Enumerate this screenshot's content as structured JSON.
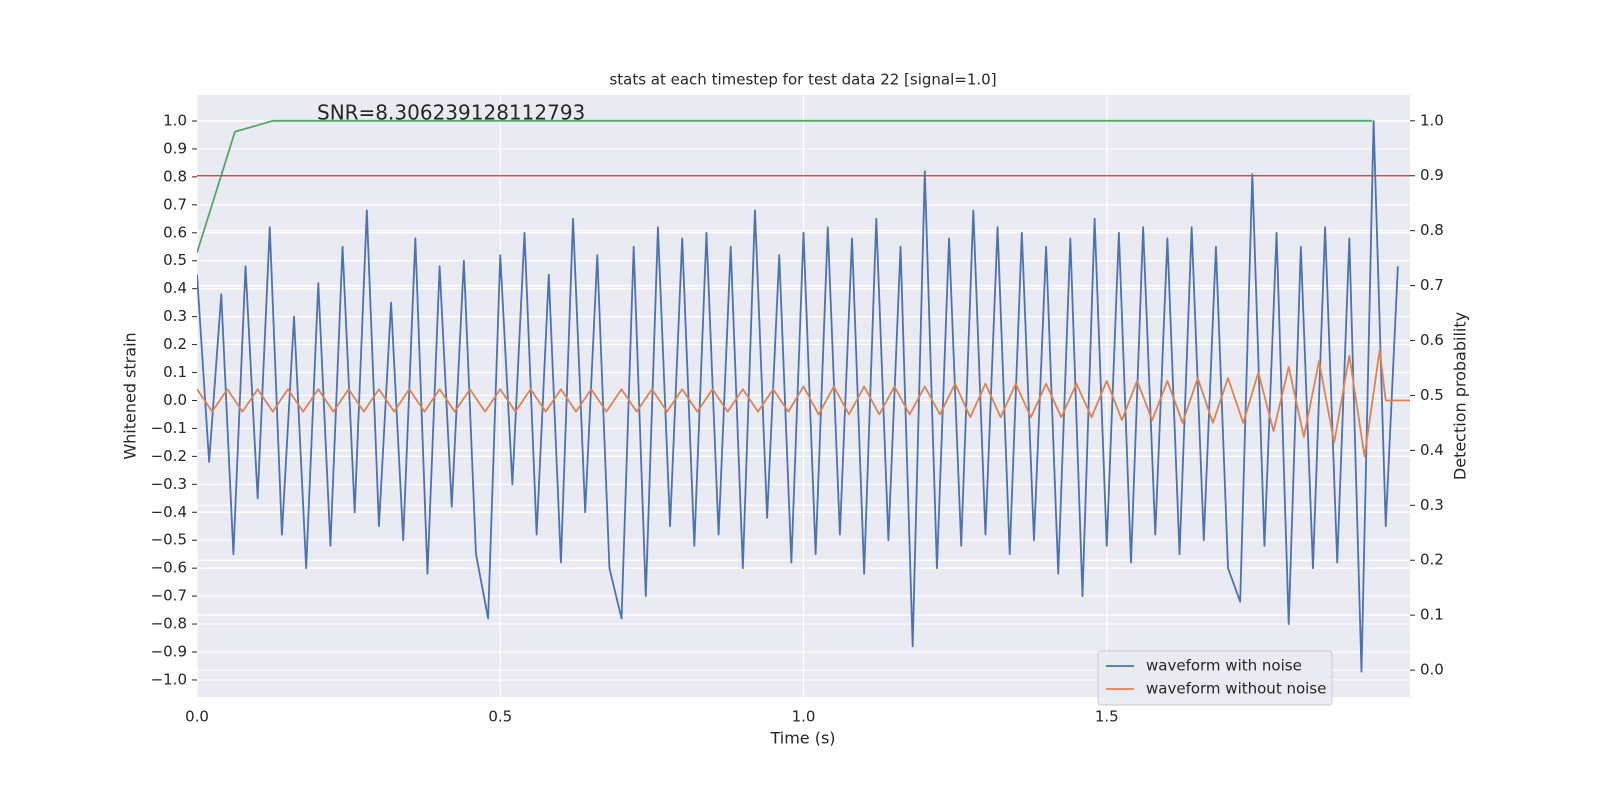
{
  "chart_data": {
    "type": "line",
    "title": "stats at each timestep for test data 22 [signal=1.0]",
    "annotation": "SNR=8.306239128112793",
    "xlabel": "Time (s)",
    "ylabel": "Whitened strain",
    "y2label": "Detection probability",
    "xlim": [
      0,
      2.0
    ],
    "ylim": [
      -1.061,
      1.093
    ],
    "y2lim": [
      -0.049,
      1.047
    ],
    "xticks": [
      {
        "value": 0,
        "label": "0.0"
      },
      {
        "value": 0.5,
        "label": "0.5"
      },
      {
        "value": 1,
        "label": "1.0"
      },
      {
        "value": 1.5,
        "label": "1.5"
      }
    ],
    "yticks": [
      {
        "value": -1,
        "label": "−1.0"
      },
      {
        "value": -0.9,
        "label": "−0.9"
      },
      {
        "value": -0.8,
        "label": "−0.8"
      },
      {
        "value": -0.7,
        "label": "−0.7"
      },
      {
        "value": -0.6,
        "label": "−0.6"
      },
      {
        "value": -0.5,
        "label": "−0.5"
      },
      {
        "value": -0.4,
        "label": "−0.4"
      },
      {
        "value": -0.3,
        "label": "−0.3"
      },
      {
        "value": -0.2,
        "label": "−0.2"
      },
      {
        "value": -0.1,
        "label": "−0.1"
      },
      {
        "value": 0,
        "label": "0.0"
      },
      {
        "value": 0.1,
        "label": "0.1"
      },
      {
        "value": 0.2,
        "label": "0.2"
      },
      {
        "value": 0.3,
        "label": "0.3"
      },
      {
        "value": 0.4,
        "label": "0.4"
      },
      {
        "value": 0.5,
        "label": "0.5"
      },
      {
        "value": 0.6,
        "label": "0.6"
      },
      {
        "value": 0.7,
        "label": "0.7"
      },
      {
        "value": 0.8,
        "label": "0.8"
      },
      {
        "value": 0.9,
        "label": "0.9"
      },
      {
        "value": 1,
        "label": "1.0"
      }
    ],
    "y2ticks": [
      {
        "value": 0,
        "label": "0.0"
      },
      {
        "value": 0.1,
        "label": "0.1"
      },
      {
        "value": 0.2,
        "label": "0.2"
      },
      {
        "value": 0.3,
        "label": "0.3"
      },
      {
        "value": 0.4,
        "label": "0.4"
      },
      {
        "value": 0.5,
        "label": "0.5"
      },
      {
        "value": 0.6,
        "label": "0.6"
      },
      {
        "value": 0.7,
        "label": "0.7"
      },
      {
        "value": 0.8,
        "label": "0.8"
      },
      {
        "value": 0.9,
        "label": "0.9"
      },
      {
        "value": 1,
        "label": "1.0"
      }
    ],
    "grid": true,
    "legend": "lower right",
    "hlines": [
      {
        "value": 0.9,
        "axis": "y2",
        "color": "#c44e52"
      }
    ],
    "series": [
      {
        "name": "waveform with noise",
        "color": "#4c72b0",
        "x": [
          0,
          0.02,
          0.04,
          0.06,
          0.08,
          0.1,
          0.12,
          0.14,
          0.16,
          0.18,
          0.2,
          0.22,
          0.24,
          0.26,
          0.28,
          0.3,
          0.32,
          0.34,
          0.36,
          0.38,
          0.4,
          0.42,
          0.44,
          0.46,
          0.48,
          0.5,
          0.52,
          0.54,
          0.56,
          0.58,
          0.6,
          0.62,
          0.64,
          0.66,
          0.68,
          0.7,
          0.72,
          0.74,
          0.76,
          0.78,
          0.8,
          0.82,
          0.84,
          0.86,
          0.88,
          0.9,
          0.92,
          0.94,
          0.96,
          0.98,
          1.0,
          1.02,
          1.04,
          1.06,
          1.08,
          1.1,
          1.12,
          1.14,
          1.16,
          1.18,
          1.2,
          1.22,
          1.24,
          1.26,
          1.28,
          1.3,
          1.32,
          1.34,
          1.36,
          1.38,
          1.4,
          1.42,
          1.44,
          1.46,
          1.48,
          1.5,
          1.52,
          1.54,
          1.56,
          1.58,
          1.6,
          1.62,
          1.64,
          1.66,
          1.68,
          1.7,
          1.72,
          1.74,
          1.76,
          1.78,
          1.8,
          1.82,
          1.84,
          1.86,
          1.88,
          1.9,
          1.92,
          1.94,
          1.96,
          1.98
        ],
        "values": [
          0.45,
          -0.22,
          0.38,
          -0.55,
          0.48,
          -0.35,
          0.62,
          -0.48,
          0.3,
          -0.6,
          0.42,
          -0.52,
          0.55,
          -0.4,
          0.68,
          -0.45,
          0.35,
          -0.5,
          0.58,
          -0.62,
          0.48,
          -0.38,
          0.5,
          -0.55,
          -0.78,
          0.52,
          -0.3,
          0.6,
          -0.48,
          0.45,
          -0.58,
          0.65,
          -0.4,
          0.52,
          -0.6,
          -0.78,
          0.55,
          -0.7,
          0.62,
          -0.45,
          0.58,
          -0.52,
          0.6,
          -0.48,
          0.55,
          -0.6,
          0.68,
          -0.42,
          0.52,
          -0.58,
          0.6,
          -0.55,
          0.62,
          -0.48,
          0.58,
          -0.62,
          0.65,
          -0.5,
          0.55,
          -0.88,
          0.82,
          -0.6,
          0.58,
          -0.52,
          0.68,
          -0.48,
          0.62,
          -0.55,
          0.6,
          -0.5,
          0.55,
          -0.62,
          0.58,
          -0.7,
          0.65,
          -0.52,
          0.6,
          -0.58,
          0.62,
          -0.48,
          0.58,
          -0.55,
          0.62,
          -0.5,
          0.55,
          -0.6,
          -0.72,
          0.81,
          -0.52,
          0.6,
          -0.8,
          0.55,
          -0.6,
          0.62,
          -0.58,
          0.58,
          -0.97,
          1.0,
          -0.45,
          0.48
        ]
      },
      {
        "name": "waveform without noise",
        "color": "#dd8452",
        "x": [
          0,
          0.025,
          0.05,
          0.075,
          0.1,
          0.125,
          0.15,
          0.175,
          0.2,
          0.225,
          0.25,
          0.275,
          0.3,
          0.325,
          0.35,
          0.375,
          0.4,
          0.425,
          0.45,
          0.475,
          0.5,
          0.525,
          0.55,
          0.575,
          0.6,
          0.625,
          0.65,
          0.675,
          0.7,
          0.725,
          0.75,
          0.775,
          0.8,
          0.825,
          0.85,
          0.875,
          0.9,
          0.925,
          0.95,
          0.975,
          1.0,
          1.025,
          1.05,
          1.075,
          1.1,
          1.125,
          1.15,
          1.175,
          1.2,
          1.225,
          1.25,
          1.275,
          1.3,
          1.325,
          1.35,
          1.375,
          1.4,
          1.425,
          1.45,
          1.475,
          1.5,
          1.525,
          1.55,
          1.575,
          1.6,
          1.625,
          1.65,
          1.675,
          1.7,
          1.725,
          1.75,
          1.775,
          1.8,
          1.825,
          1.85,
          1.875,
          1.9,
          1.925,
          1.95,
          1.96,
          2.0
        ],
        "values": [
          0.04,
          -0.04,
          0.04,
          -0.04,
          0.04,
          -0.04,
          0.04,
          -0.04,
          0.04,
          -0.04,
          0.04,
          -0.04,
          0.04,
          -0.04,
          0.04,
          -0.04,
          0.04,
          -0.04,
          0.04,
          -0.04,
          0.04,
          -0.04,
          0.04,
          -0.04,
          0.04,
          -0.04,
          0.04,
          -0.04,
          0.04,
          -0.04,
          0.04,
          -0.04,
          0.04,
          -0.04,
          0.04,
          -0.04,
          0.04,
          -0.04,
          0.04,
          -0.04,
          0.05,
          -0.05,
          0.05,
          -0.05,
          0.05,
          -0.05,
          0.05,
          -0.05,
          0.05,
          -0.05,
          0.06,
          -0.06,
          0.06,
          -0.06,
          0.06,
          -0.06,
          0.06,
          -0.06,
          0.06,
          -0.06,
          0.07,
          -0.07,
          0.07,
          -0.07,
          0.07,
          -0.08,
          0.08,
          -0.08,
          0.08,
          -0.08,
          0.1,
          -0.11,
          0.12,
          -0.13,
          0.14,
          -0.15,
          0.16,
          -0.2,
          0.18,
          0,
          0
        ]
      },
      {
        "color": "#55a868",
        "axis": "y2",
        "x": [
          0,
          0.0625,
          0.125,
          1.9375
        ],
        "values": [
          0.76,
          0.98,
          1.0,
          1.0
        ]
      }
    ]
  }
}
